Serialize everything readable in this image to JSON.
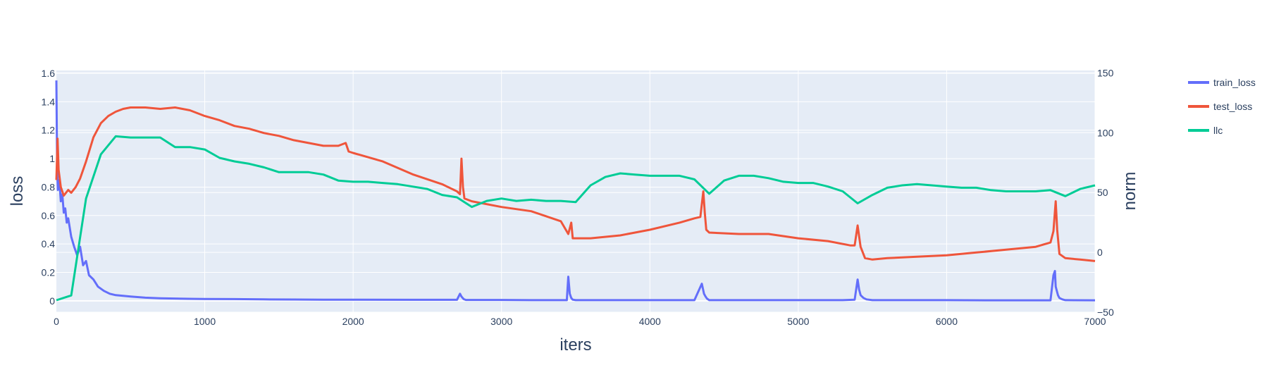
{
  "chart_data": {
    "type": "line",
    "xlabel": "iters",
    "ylabel": "loss",
    "y2label": "norm",
    "xlim": [
      0,
      7000
    ],
    "ylim": [
      -0.08,
      1.62
    ],
    "y2lim": [
      -50,
      152
    ],
    "xticks": [
      0,
      1000,
      2000,
      3000,
      4000,
      5000,
      6000,
      7000
    ],
    "xtick_labels": [
      "0",
      "1000",
      "2000",
      "3000",
      "4000",
      "5000",
      "6000",
      "7000"
    ],
    "yticks": [
      0,
      0.2,
      0.4,
      0.6,
      0.8,
      1,
      1.2,
      1.4,
      1.6
    ],
    "ytick_labels": [
      "0",
      "0.2",
      "0.4",
      "0.6",
      "0.8",
      "1",
      "1.2",
      "1.4",
      "1.6"
    ],
    "y2ticks": [
      -50,
      0,
      50,
      100,
      150
    ],
    "y2tick_labels": [
      "−50",
      "0",
      "50",
      "100",
      "150"
    ],
    "grid": true,
    "legend_position": "top-right",
    "series": [
      {
        "name": "train_loss",
        "axis": "y",
        "color": "#636efa",
        "x": [
          0,
          5,
          10,
          20,
          30,
          40,
          50,
          60,
          70,
          80,
          100,
          120,
          140,
          160,
          180,
          200,
          220,
          250,
          280,
          320,
          360,
          400,
          450,
          500,
          600,
          700,
          800,
          900,
          1000,
          1200,
          1400,
          1600,
          1800,
          2000,
          2400,
          2700,
          2720,
          2730,
          2745,
          2760,
          2800,
          3000,
          3200,
          3440,
          3450,
          3460,
          3470,
          3480,
          3500,
          3800,
          4000,
          4300,
          4350,
          4365,
          4375,
          4385,
          4400,
          4700,
          5000,
          5300,
          5380,
          5400,
          5410,
          5420,
          5440,
          5460,
          5500,
          5800,
          6000,
          6300,
          6600,
          6700,
          6720,
          6730,
          6735,
          6750,
          6760,
          6780,
          6800,
          7000
        ],
        "y": [
          1.55,
          0.92,
          0.78,
          0.85,
          0.7,
          0.75,
          0.62,
          0.65,
          0.55,
          0.58,
          0.45,
          0.38,
          0.32,
          0.38,
          0.25,
          0.28,
          0.18,
          0.15,
          0.1,
          0.07,
          0.05,
          0.04,
          0.035,
          0.03,
          0.022,
          0.018,
          0.016,
          0.014,
          0.013,
          0.012,
          0.01,
          0.009,
          0.008,
          0.008,
          0.007,
          0.007,
          0.05,
          0.03,
          0.012,
          0.006,
          0.006,
          0.006,
          0.005,
          0.005,
          0.17,
          0.05,
          0.02,
          0.008,
          0.005,
          0.005,
          0.005,
          0.005,
          0.12,
          0.05,
          0.03,
          0.015,
          0.005,
          0.005,
          0.005,
          0.005,
          0.008,
          0.15,
          0.08,
          0.04,
          0.02,
          0.01,
          0.005,
          0.005,
          0.005,
          0.004,
          0.004,
          0.004,
          0.18,
          0.21,
          0.1,
          0.04,
          0.02,
          0.01,
          0.005,
          0.004
        ]
      },
      {
        "name": "test_loss",
        "axis": "y",
        "color": "#ef553b",
        "x": [
          0,
          8,
          15,
          30,
          50,
          80,
          100,
          130,
          160,
          200,
          250,
          300,
          350,
          400,
          450,
          500,
          600,
          700,
          800,
          900,
          1000,
          1100,
          1200,
          1300,
          1400,
          1500,
          1600,
          1700,
          1800,
          1900,
          1950,
          1970,
          2000,
          2200,
          2400,
          2600,
          2700,
          2720,
          2730,
          2740,
          2750,
          2800,
          3000,
          3200,
          3400,
          3450,
          3470,
          3480,
          3500,
          3600,
          3800,
          4000,
          4200,
          4300,
          4340,
          4360,
          4370,
          4380,
          4400,
          4600,
          4800,
          5000,
          5200,
          5350,
          5380,
          5400,
          5420,
          5450,
          5500,
          5600,
          5800,
          6000,
          6200,
          6400,
          6600,
          6700,
          6720,
          6735,
          6745,
          6760,
          6800,
          6900,
          7000
        ],
        "y": [
          0.85,
          1.14,
          0.92,
          0.8,
          0.74,
          0.78,
          0.76,
          0.8,
          0.86,
          0.98,
          1.15,
          1.25,
          1.3,
          1.33,
          1.35,
          1.36,
          1.36,
          1.35,
          1.36,
          1.34,
          1.3,
          1.27,
          1.23,
          1.21,
          1.18,
          1.16,
          1.13,
          1.11,
          1.09,
          1.09,
          1.11,
          1.05,
          1.04,
          0.98,
          0.89,
          0.82,
          0.77,
          0.75,
          1.0,
          0.8,
          0.72,
          0.7,
          0.66,
          0.63,
          0.56,
          0.47,
          0.55,
          0.44,
          0.44,
          0.44,
          0.46,
          0.5,
          0.55,
          0.58,
          0.59,
          0.77,
          0.62,
          0.5,
          0.48,
          0.47,
          0.47,
          0.44,
          0.42,
          0.39,
          0.39,
          0.53,
          0.38,
          0.3,
          0.29,
          0.3,
          0.31,
          0.32,
          0.34,
          0.36,
          0.38,
          0.41,
          0.49,
          0.7,
          0.5,
          0.33,
          0.3,
          0.29,
          0.28
        ]
      },
      {
        "name": "llc",
        "axis": "y2",
        "color": "#00cc96",
        "x": [
          0,
          100,
          200,
          300,
          400,
          500,
          600,
          700,
          800,
          900,
          1000,
          1100,
          1200,
          1300,
          1400,
          1500,
          1600,
          1700,
          1800,
          1900,
          2000,
          2100,
          2200,
          2300,
          2400,
          2500,
          2600,
          2700,
          2800,
          2900,
          3000,
          3100,
          3200,
          3300,
          3400,
          3500,
          3600,
          3700,
          3800,
          3900,
          4000,
          4100,
          4200,
          4300,
          4400,
          4500,
          4600,
          4700,
          4800,
          4900,
          5000,
          5100,
          5200,
          5300,
          5400,
          5500,
          5600,
          5700,
          5800,
          5900,
          6000,
          6100,
          6200,
          6300,
          6400,
          6500,
          6600,
          6700,
          6800,
          6900,
          7000
        ],
        "y": [
          -40,
          -36,
          45,
          82,
          97,
          96,
          96,
          96,
          88,
          88,
          86,
          79,
          76,
          74,
          71,
          67,
          67,
          67,
          65,
          60,
          59,
          59,
          58,
          57,
          55,
          53,
          48,
          46,
          38,
          43,
          45,
          43,
          44,
          43,
          43,
          42,
          56,
          63,
          66,
          65,
          64,
          64,
          64,
          61,
          49,
          60,
          64,
          64,
          62,
          59,
          58,
          58,
          55,
          51,
          41,
          48,
          54,
          56,
          57,
          56,
          55,
          54,
          54,
          52,
          51,
          51,
          51,
          52,
          47,
          53,
          56
        ]
      }
    ]
  }
}
